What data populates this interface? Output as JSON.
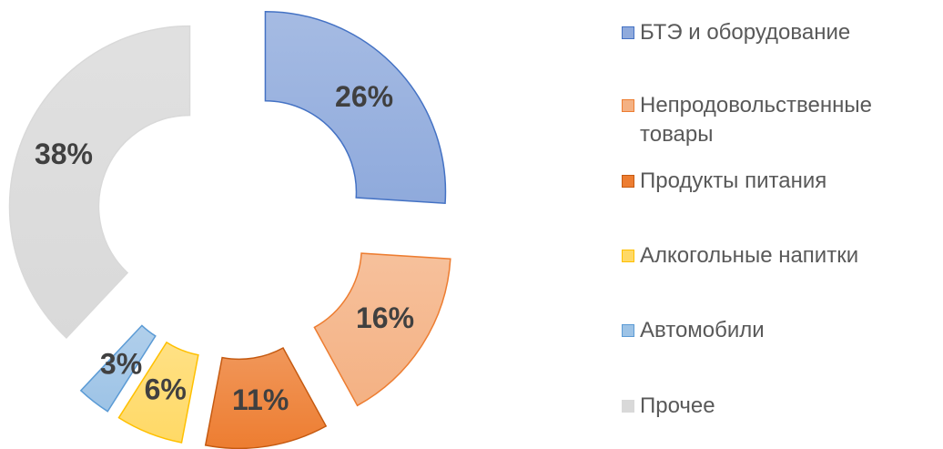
{
  "chart_data": {
    "type": "donut",
    "categories": [
      "БТЭ и оборудование",
      "Непродовольственные товары",
      "Продукты питания",
      "Алкогольные напитки",
      "Автомобили",
      "Прочее"
    ],
    "values": [
      26,
      16,
      11,
      6,
      3,
      38
    ],
    "value_labels": [
      "26%",
      "16%",
      "11%",
      "6%",
      "3%",
      "38%"
    ],
    "colors": [
      "#8faadc",
      "#f4b183",
      "#ed7d31",
      "#ffd966",
      "#9dc3e6",
      "#d9d9d9"
    ],
    "legend": "right"
  }
}
